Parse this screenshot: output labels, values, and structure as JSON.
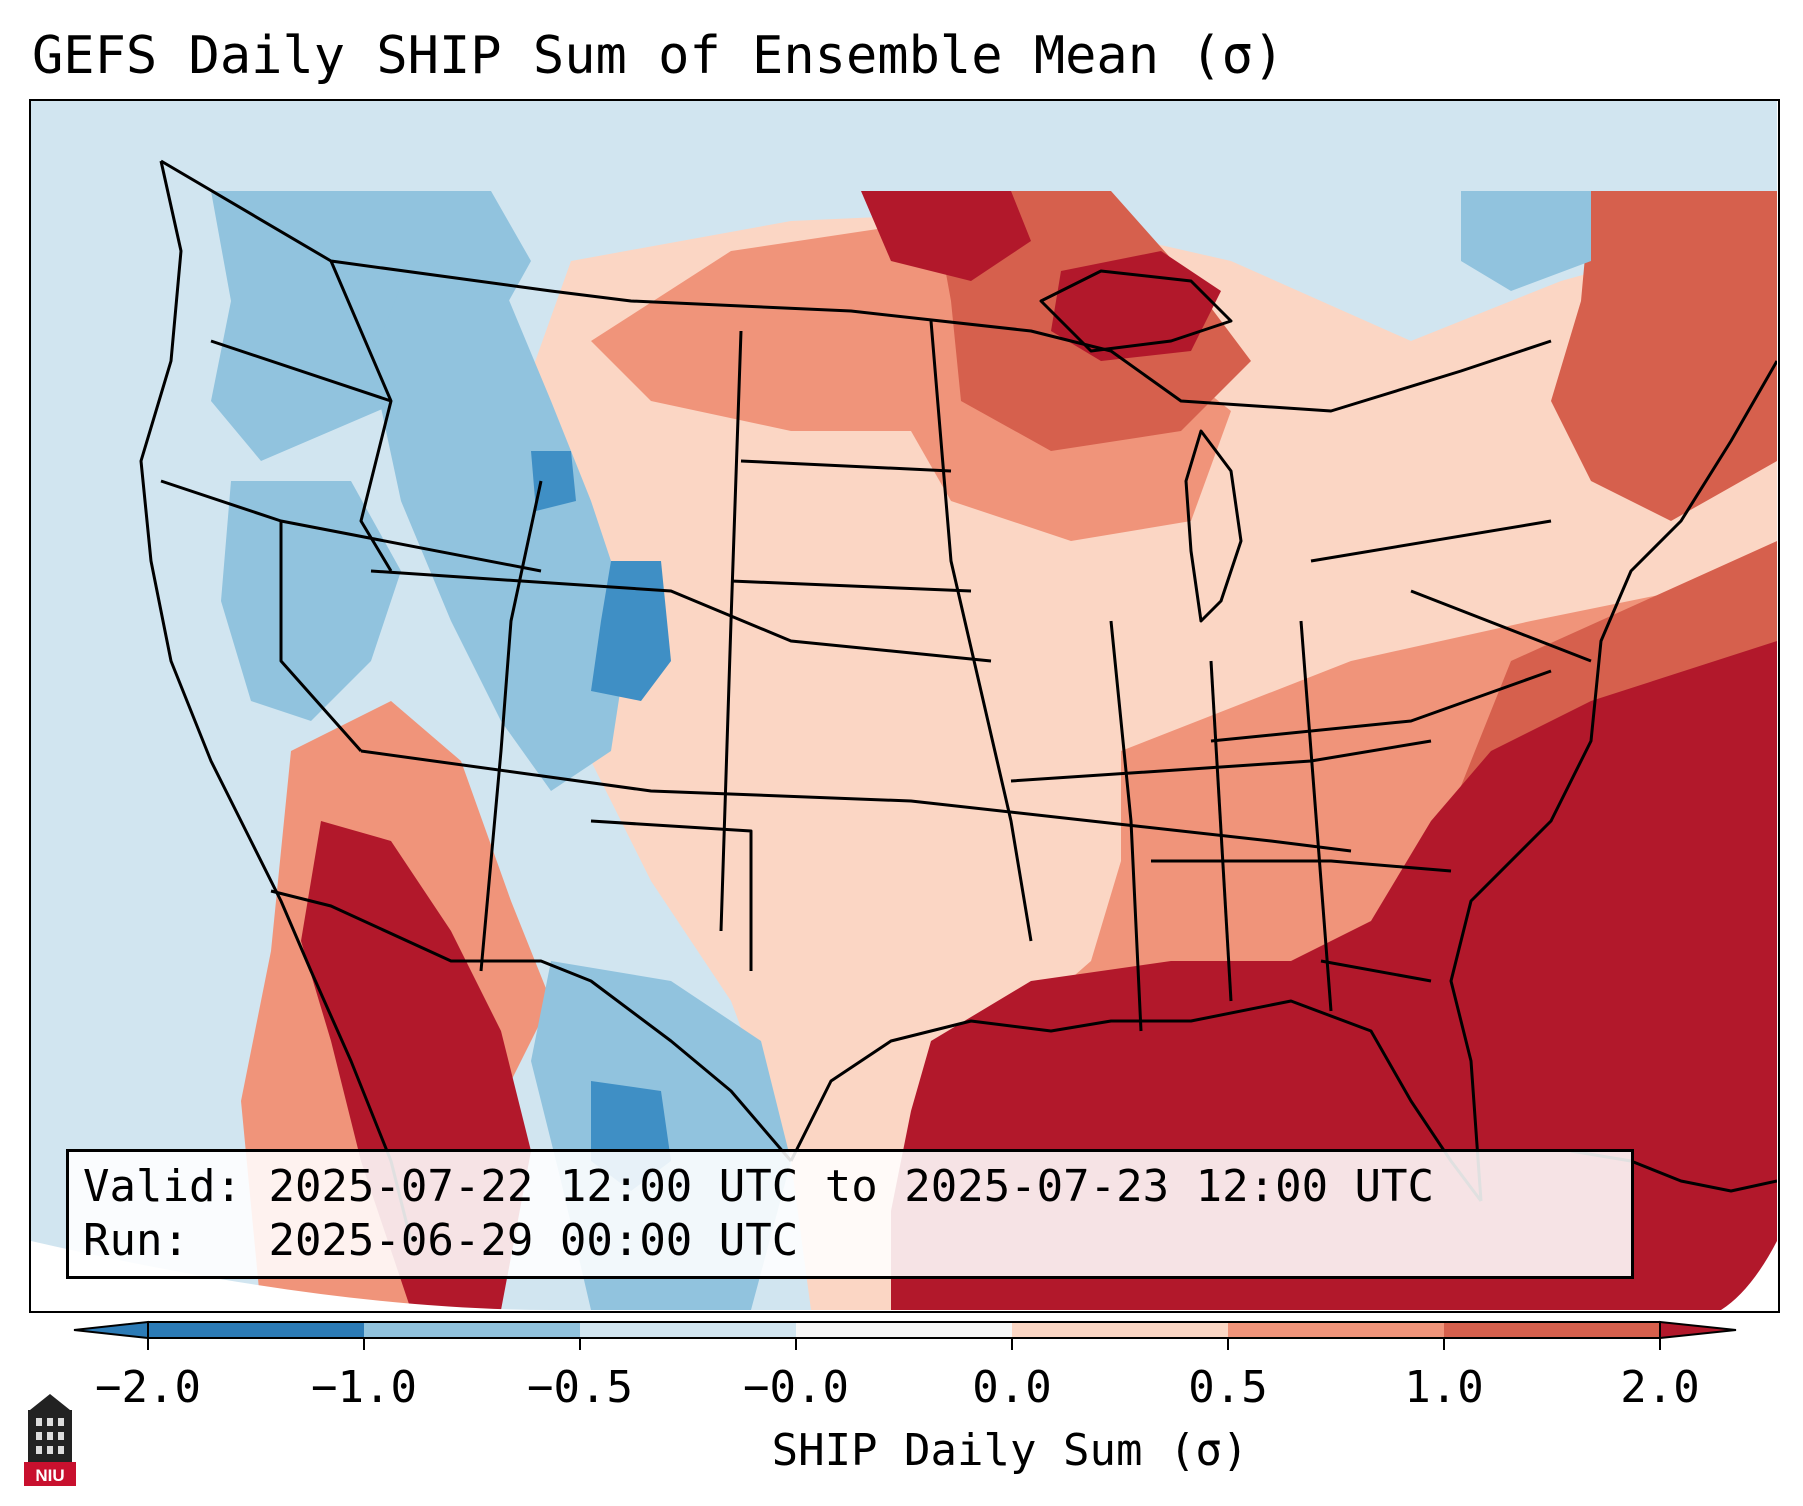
{
  "title": "GEFS Daily SHIP Sum of Ensemble Mean (σ)",
  "info": {
    "valid_label": "Valid:",
    "valid_value": "2025-07-22 12:00 UTC to 2025-07-23 12:00 UTC",
    "run_label": "Run:",
    "run_value": "2025-06-29 00:00 UTC"
  },
  "colorbar": {
    "label": "SHIP Daily Sum (σ)",
    "ticks": [
      "−2.0",
      "−1.0",
      "−0.5",
      "−0.0",
      "0.0",
      "0.5",
      "1.0",
      "2.0"
    ],
    "bin_colors": [
      "#2c7bb6",
      "#3f8fc5",
      "#91c3de",
      "#d1e5f0",
      "#f7f7f7",
      "#fbd6c4",
      "#f0947a",
      "#d6604d",
      "#b2182b",
      "#b2182b"
    ],
    "extend": "both"
  },
  "map": {
    "region": "Contiguous United States",
    "field": "SHIP daily sum anomaly (sigma)"
  },
  "logo": {
    "text": "NIU",
    "icon": "university-tower-icon"
  }
}
